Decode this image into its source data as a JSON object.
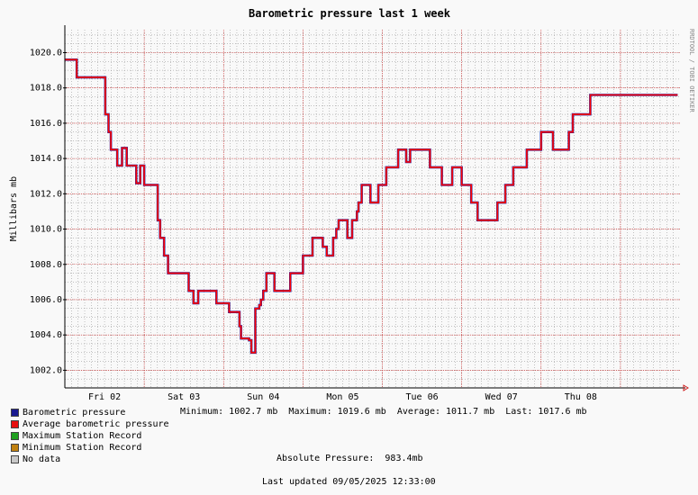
{
  "chart_data": {
    "type": "line",
    "title": "Barometric pressure last 1 week",
    "ylabel": "Millibars  mb",
    "watermark": "RRDTOOL / TOBI OETIKER",
    "ylim": [
      1001.0,
      1021.3
    ],
    "yticks": [
      {
        "v": 1002.0,
        "label": "1002.0"
      },
      {
        "v": 1004.0,
        "label": "1004.0"
      },
      {
        "v": 1006.0,
        "label": "1006.0"
      },
      {
        "v": 1008.0,
        "label": "1008.0"
      },
      {
        "v": 1010.0,
        "label": "1010.0"
      },
      {
        "v": 1012.0,
        "label": "1012.0"
      },
      {
        "v": 1014.0,
        "label": "1014.0"
      },
      {
        "v": 1016.0,
        "label": "1016.0"
      },
      {
        "v": 1018.0,
        "label": "1018.0"
      },
      {
        "v": 1020.0,
        "label": "1020.0"
      }
    ],
    "xlim": [
      0,
      7.75
    ],
    "xticks": [
      {
        "v": 0.5,
        "label": "Fri 02"
      },
      {
        "v": 1.5,
        "label": "Sat 03"
      },
      {
        "v": 2.5,
        "label": "Sun 04"
      },
      {
        "v": 3.5,
        "label": "Mon 05"
      },
      {
        "v": 4.5,
        "label": "Tue 06"
      },
      {
        "v": 5.5,
        "label": "Wed 07"
      },
      {
        "v": 6.5,
        "label": "Thu 08"
      }
    ],
    "colors": {
      "major_grid": "#d02020",
      "minor_grid": "#888888",
      "barometric": "#2020a0",
      "average": "#ff0000"
    },
    "series": [
      {
        "name": "Average barometric pressure",
        "color": "#ff0000",
        "x": [
          0,
          0.14,
          0.15,
          0.46,
          0.51,
          0.55,
          0.58,
          0.6,
          0.66,
          0.69,
          0.72,
          0.78,
          0.88,
          0.9,
          0.95,
          1.0,
          1.15,
          1.17,
          1.2,
          1.25,
          1.28,
          1.3,
          1.45,
          1.5,
          1.53,
          1.56,
          1.58,
          1.62,
          1.68,
          1.9,
          1.91,
          2.04,
          2.07,
          2.2,
          2.22,
          2.32,
          2.35,
          2.4,
          2.45,
          2.47,
          2.5,
          2.54,
          2.56,
          2.6,
          2.64,
          2.8,
          2.84,
          3.0,
          3.05,
          3.12,
          3.16,
          3.25,
          3.3,
          3.34,
          3.38,
          3.42,
          3.45,
          3.52,
          3.56,
          3.6,
          3.62,
          3.68,
          3.7,
          3.74,
          3.8,
          3.85,
          3.88,
          3.95,
          4.0,
          4.05,
          4.1,
          4.2,
          4.25,
          4.3,
          4.35,
          4.4,
          4.45,
          4.55,
          4.6,
          4.7,
          4.75,
          4.8,
          4.88,
          4.95,
          5.0,
          5.05,
          5.12,
          5.2,
          5.35,
          5.45,
          5.5,
          5.55,
          5.6,
          5.65,
          5.75,
          5.82,
          5.9,
          6.0,
          6.05,
          6.15,
          6.2,
          6.35,
          6.4,
          6.5,
          6.62,
          6.7,
          6.8,
          6.88,
          7.0,
          7.1,
          7.15,
          7.25,
          7.35,
          7.45,
          7.55
        ],
        "y": [
          1019.6,
          1019.6,
          1018.6,
          1018.6,
          1016.5,
          1015.5,
          1014.5,
          1014.5,
          1013.6,
          1013.6,
          1014.6,
          1013.6,
          1013.6,
          1012.6,
          1013.6,
          1012.5,
          1012.5,
          1010.5,
          1009.5,
          1008.5,
          1008.5,
          1007.5,
          1007.5,
          1007.5,
          1007.5,
          1006.5,
          1006.5,
          1005.8,
          1006.5,
          1006.5,
          1005.8,
          1005.8,
          1005.3,
          1004.5,
          1003.8,
          1003.7,
          1003.0,
          1005.5,
          1005.7,
          1006.0,
          1006.5,
          1007.5,
          1007.5,
          1007.5,
          1006.5,
          1006.5,
          1007.5,
          1008.5,
          1008.5,
          1009.5,
          1009.5,
          1009.0,
          1008.5,
          1008.5,
          1009.5,
          1010.0,
          1010.5,
          1010.5,
          1009.5,
          1009.5,
          1010.5,
          1011.0,
          1011.5,
          1012.5,
          1012.5,
          1011.5,
          1011.5,
          1012.5,
          1012.5,
          1013.5,
          1013.5,
          1014.5,
          1014.5,
          1013.8,
          1014.5,
          1014.5,
          1014.5,
          1014.5,
          1013.5,
          1013.5,
          1012.5,
          1012.5,
          1013.5,
          1013.5,
          1012.5,
          1012.5,
          1011.5,
          1010.5,
          1010.5,
          1011.5,
          1011.5,
          1012.5,
          1012.5,
          1013.5,
          1013.5,
          1014.5,
          1014.5,
          1015.5,
          1015.5,
          1014.5,
          1014.5,
          1015.5,
          1016.5,
          1016.5,
          1017.6,
          1017.6,
          1017.6,
          1017.6,
          1017.6,
          1017.6,
          1017.6,
          1017.6,
          1017.6,
          1017.6,
          1017.6
        ]
      }
    ],
    "legend": [
      {
        "label": "Barometric pressure",
        "color": "#1a1a90"
      },
      {
        "label": "Average barometric pressure",
        "color": "#e81010"
      },
      {
        "label": "Maximum Station Record",
        "color": "#20a020"
      },
      {
        "label": "Minimum Station Record",
        "color": "#c08010"
      },
      {
        "label": "No data",
        "color": "#c8c8c8"
      }
    ],
    "stats": {
      "minimum": "Minimum: 1002.7 mb",
      "maximum": "Maximum: 1019.6 mb",
      "average": "Average: 1011.7 mb",
      "last": "Last: 1017.6 mb"
    },
    "absolute_pressure": "Absolute Pressure:  983.4mb",
    "last_updated": "Last updated 09/05/2025 12:33:00"
  }
}
